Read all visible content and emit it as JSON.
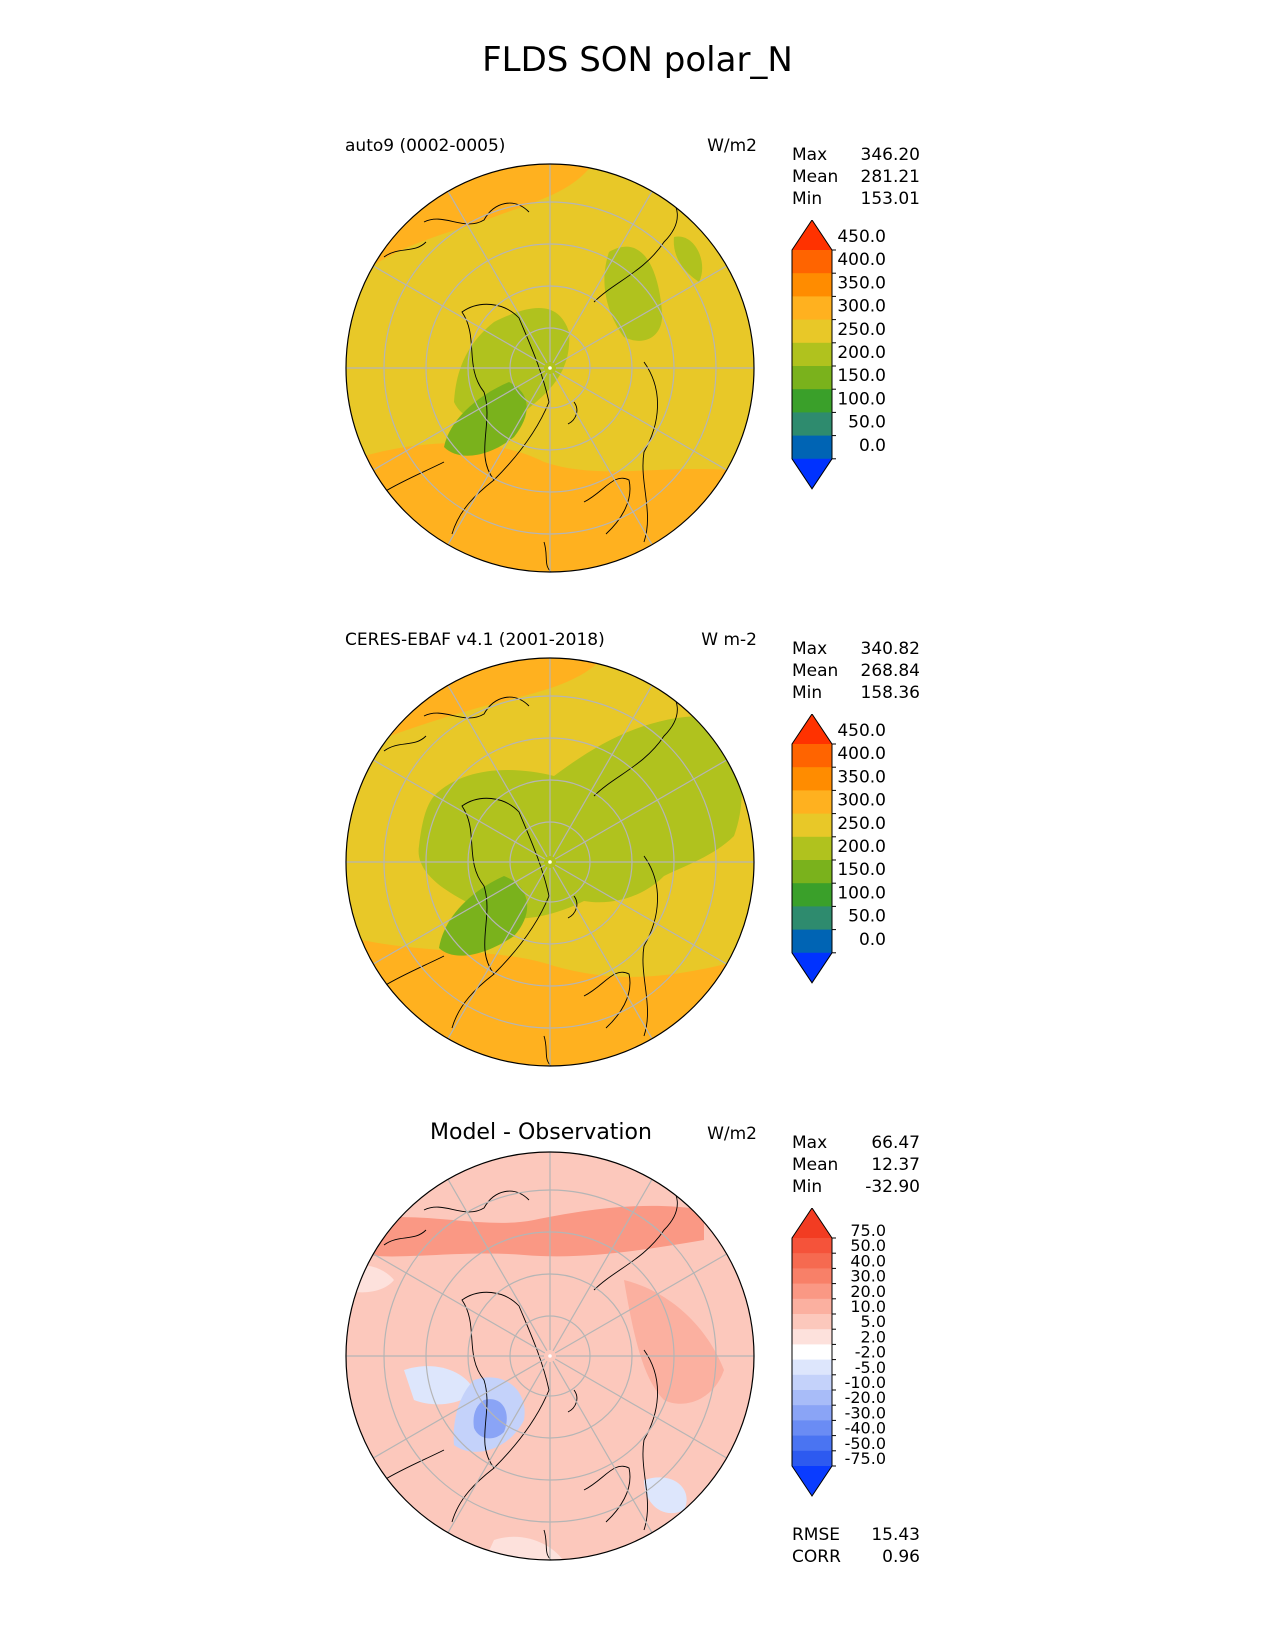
{
  "figure": {
    "title": "FLDS SON polar_N"
  },
  "colors": {
    "abs_levels": [
      "#0032ff",
      "#0064b4",
      "#2e8b6e",
      "#3aa02a",
      "#7ab21c",
      "#b0c21e",
      "#e8c828",
      "#ffb11f",
      "#ff8c00",
      "#ff6400",
      "#ff3200"
    ],
    "diff_levels": [
      "#0a3cff",
      "#2d5af0",
      "#4a74f2",
      "#6a8cf4",
      "#8aa4f6",
      "#a8bcf8",
      "#c4d2fa",
      "#dde6fc",
      "#ffffff",
      "#fde1dc",
      "#fcc8bc",
      "#fbb0a0",
      "#fa9884",
      "#f88068",
      "#f66a50",
      "#f5533a",
      "#f23c22"
    ],
    "land_line": "#000000",
    "grid_line": "#b5b5b5"
  },
  "chart_data": [
    {
      "type": "heatmap",
      "projection": "polar stereographic north",
      "left_title": "auto9 (0002-0005)",
      "units": "W/m2",
      "stats": [
        {
          "label": "Max",
          "value": "346.20"
        },
        {
          "label": "Mean",
          "value": "281.21"
        },
        {
          "label": "Min",
          "value": "153.01"
        }
      ],
      "colorbar": {
        "levels": [
          0,
          50,
          100,
          150,
          200,
          250,
          300,
          350,
          400,
          450
        ],
        "tick_labels": [
          "0.0",
          "50.0",
          "100.0",
          "150.0",
          "200.0",
          "250.0",
          "300.0",
          "350.0",
          "400.0",
          "450.0"
        ],
        "extend": "both"
      }
    },
    {
      "type": "heatmap",
      "projection": "polar stereographic north",
      "left_title": "CERES-EBAF v4.1 (2001-2018)",
      "units": "W m-2",
      "stats": [
        {
          "label": "Max",
          "value": "340.82"
        },
        {
          "label": "Mean",
          "value": "268.84"
        },
        {
          "label": "Min",
          "value": "158.36"
        }
      ],
      "colorbar": {
        "levels": [
          0,
          50,
          100,
          150,
          200,
          250,
          300,
          350,
          400,
          450
        ],
        "tick_labels": [
          "0.0",
          "50.0",
          "100.0",
          "150.0",
          "200.0",
          "250.0",
          "300.0",
          "350.0",
          "400.0",
          "450.0"
        ],
        "extend": "both"
      }
    },
    {
      "type": "heatmap",
      "projection": "polar stereographic north",
      "center_title": "Model - Observation",
      "units": "W/m2",
      "stats": [
        {
          "label": "Max",
          "value": "66.47"
        },
        {
          "label": "Mean",
          "value": "12.37"
        },
        {
          "label": "Min",
          "value": "-32.90"
        }
      ],
      "colorbar": {
        "levels": [
          -75,
          -50,
          -40,
          -30,
          -20,
          -10,
          -5,
          -2,
          2,
          5,
          10,
          20,
          30,
          40,
          50,
          75
        ],
        "tick_labels": [
          "-75.0",
          "-50.0",
          "-40.0",
          "-30.0",
          "-20.0",
          "-10.0",
          "-5.0",
          "-2.0",
          "2.0",
          "5.0",
          "10.0",
          "20.0",
          "30.0",
          "40.0",
          "50.0",
          "75.0"
        ],
        "extend": "both"
      },
      "metrics": [
        {
          "label": "RMSE",
          "value": "15.43"
        },
        {
          "label": "CORR",
          "value": "0.96"
        }
      ]
    }
  ]
}
